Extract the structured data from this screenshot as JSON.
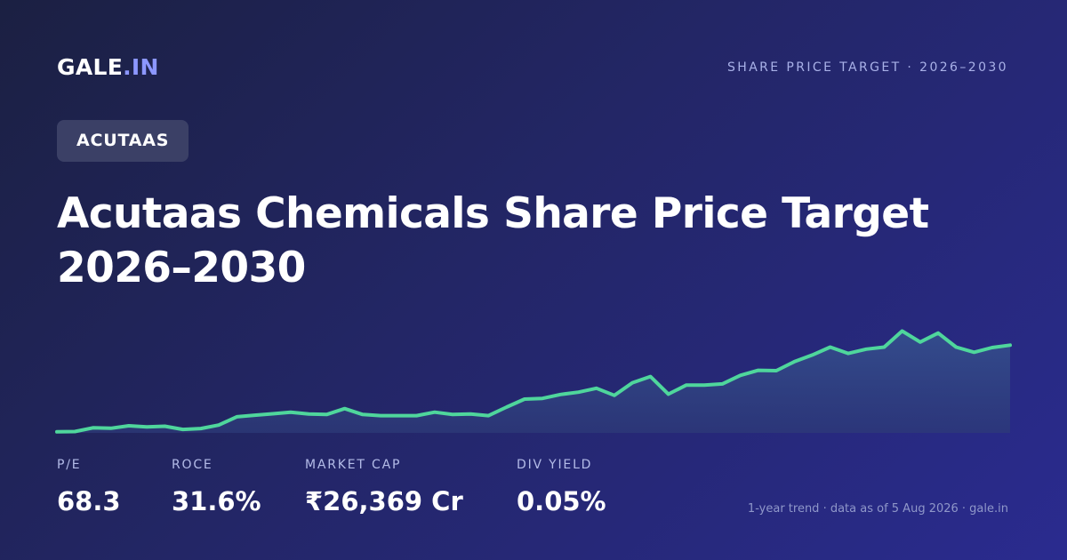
{
  "brand": {
    "name": "GALE",
    "suffix": ".IN"
  },
  "header": {
    "tagline": "SHARE PRICE TARGET · 2026–2030"
  },
  "ticker": "ACUTAAS",
  "title": "Acutaas Chemicals Share Price Target 2026–2030",
  "stats": [
    {
      "label": "P/E",
      "value": "68.3"
    },
    {
      "label": "ROCE",
      "value": "31.6%"
    },
    {
      "label": "MARKET CAP",
      "value": "₹26,369 Cr"
    },
    {
      "label": "DIV YIELD",
      "value": "0.05%"
    }
  ],
  "footnote": "1-year trend · data as of 5 Aug 2026 · gale.in",
  "colors": {
    "line": "#4fd69c",
    "accent": "#8c97ff"
  },
  "chart_data": {
    "type": "area",
    "values": [
      1,
      1.3,
      4.8,
      4.4,
      6.7,
      5.6,
      6.3,
      3.3,
      4.1,
      7.4,
      15.2,
      16.7,
      18.1,
      19.6,
      17.8,
      17.4,
      22.9,
      17.4,
      16.3,
      16.3,
      16.3,
      19.6,
      17.4,
      17.8,
      16.3,
      24.4,
      31.9,
      32.6,
      36.3,
      38.5,
      42.2,
      35.5,
      47.4,
      53.3,
      36.6,
      45.2,
      45.2,
      46.3,
      54.4,
      59.2,
      58.8,
      67.3,
      73.6,
      81.1,
      75.1,
      79.2,
      81.1,
      96.3,
      85.9,
      94.4,
      81.1,
      76.2,
      80.7,
      82.9
    ]
  }
}
